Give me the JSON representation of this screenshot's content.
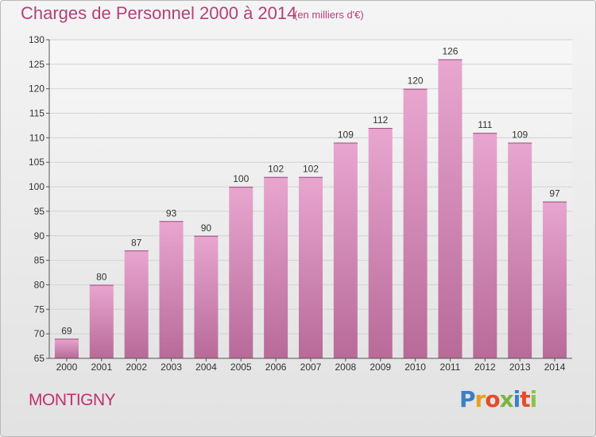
{
  "header": {
    "title": "Charges de Personnel 2000 à 2014",
    "subtitle": "(en milliers d'€)"
  },
  "footer": {
    "town": "MONTIGNY",
    "logo": "Proxiti"
  },
  "colors": {
    "title": "#b4407a",
    "bar_top": "#e8a6cf",
    "bar_bottom": "#b86a98"
  },
  "chart_data": {
    "type": "bar",
    "title": "Charges de Personnel 2000 à 2014",
    "subtitle": "(en milliers d'€)",
    "categories": [
      "2000",
      "2001",
      "2002",
      "2003",
      "2004",
      "2005",
      "2006",
      "2007",
      "2008",
      "2009",
      "2010",
      "2011",
      "2012",
      "2013",
      "2014"
    ],
    "values": [
      69,
      80,
      87,
      93,
      90,
      100,
      102,
      102,
      109,
      112,
      120,
      126,
      111,
      109,
      97
    ],
    "ylim": [
      65,
      130
    ],
    "yticks": [
      65,
      70,
      75,
      80,
      85,
      90,
      95,
      100,
      105,
      110,
      115,
      120,
      125,
      130
    ],
    "grid": true
  }
}
